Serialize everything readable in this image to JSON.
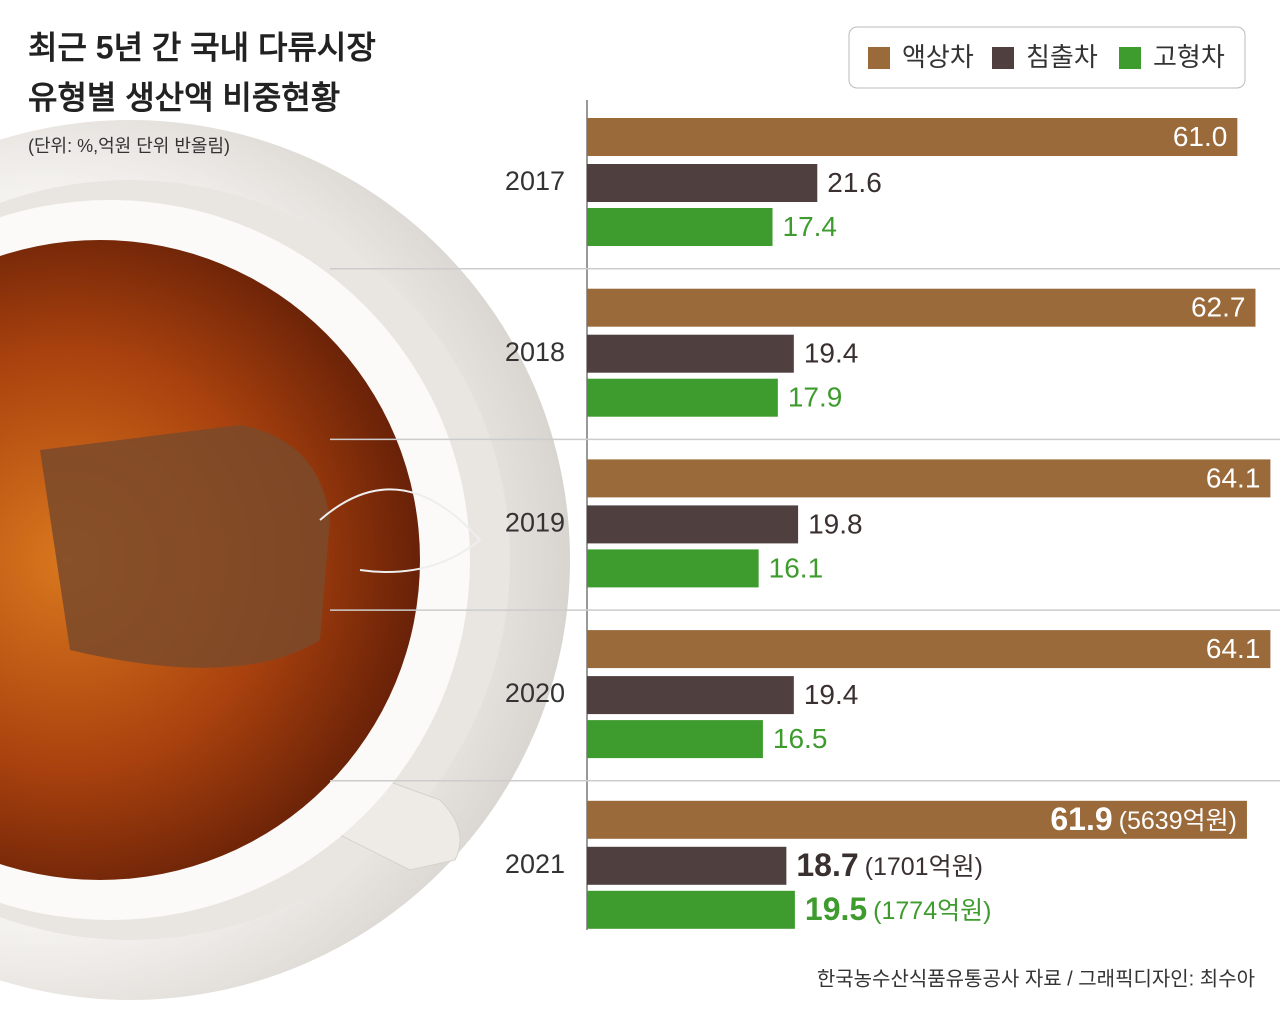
{
  "chart_data": {
    "type": "bar",
    "orientation": "horizontal",
    "title": [
      "최근 5년 간 국내 다류시장",
      "유형별 생산액 비중현황"
    ],
    "subtitle": "(단위: %,억원 단위 반올림)",
    "source": "한국농수산식품유통공사 자료 /  그래픽디자인: 최수아",
    "categories": [
      "2017",
      "2018",
      "2019",
      "2020",
      "2021"
    ],
    "xlim": [
      0,
      65
    ],
    "series": [
      {
        "name": "액상차",
        "color": "#9a6a3b",
        "label_color": "#ffffff",
        "label_inside": true,
        "values": [
          61,
          62.7,
          64.1,
          64.1,
          61.9
        ],
        "value_labels": [
          "61.0",
          "62.7",
          "64.1",
          "64.1",
          "61.9"
        ],
        "amount_labels": [
          null,
          null,
          null,
          null,
          "(5639억원)"
        ]
      },
      {
        "name": "침출차",
        "color": "#4f3f3f",
        "label_color": "#3a3030",
        "label_inside": false,
        "values": [
          21.6,
          19.4,
          19.8,
          19.4,
          18.7
        ],
        "amount_labels": [
          null,
          null,
          null,
          null,
          "(1701억원)"
        ]
      },
      {
        "name": "고형차",
        "color": "#3e9b2e",
        "label_color": "#3e9b2e",
        "label_inside": false,
        "values": [
          17.4,
          17.9,
          16.1,
          16.5,
          19.5
        ],
        "amount_labels": [
          null,
          null,
          null,
          null,
          "(1774억원)"
        ]
      }
    ]
  }
}
